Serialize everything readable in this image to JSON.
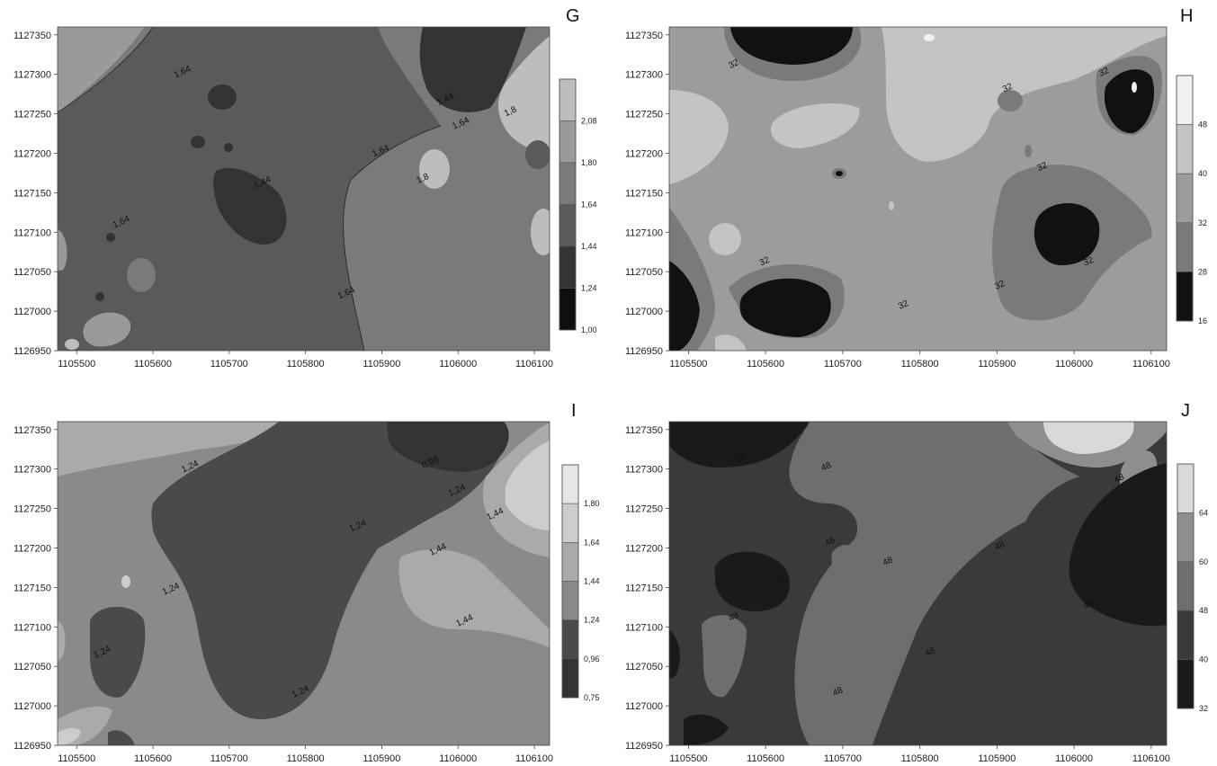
{
  "chart_data": [
    {
      "type": "heatmap",
      "panel_label": "G",
      "x_ticks": [
        1105500,
        1105600,
        1105700,
        1105800,
        1105900,
        1106000,
        1106100
      ],
      "y_ticks": [
        1127350,
        1127300,
        1127250,
        1127200,
        1127150,
        1127100,
        1127050,
        1127000,
        1126950
      ],
      "xlim": [
        1105475,
        1106120
      ],
      "ylim": [
        1126950,
        1127360
      ],
      "legend_levels": [
        "2,08",
        "1,80",
        "1,64",
        "1,44",
        "1,24",
        "1,00"
      ],
      "legend_colors": [
        "#bdbdbd",
        "#9a9a9a",
        "#7a7a7a",
        "#5a5a5a",
        "#333333",
        "#0f0f0f"
      ],
      "contour_labels": [
        {
          "text": "1,64",
          "x": 1105640,
          "y": 1127300
        },
        {
          "text": "1,64",
          "x": 1105560,
          "y": 1127110
        },
        {
          "text": "1,44",
          "x": 1105745,
          "y": 1127160
        },
        {
          "text": "1,64",
          "x": 1105855,
          "y": 1127020
        },
        {
          "text": "1,64",
          "x": 1105900,
          "y": 1127200
        },
        {
          "text": "1,8",
          "x": 1105955,
          "y": 1127165
        },
        {
          "text": "1,44",
          "x": 1105985,
          "y": 1127265
        },
        {
          "text": "1,64",
          "x": 1106005,
          "y": 1127235
        },
        {
          "text": "1,8",
          "x": 1106070,
          "y": 1127250
        }
      ]
    },
    {
      "type": "heatmap",
      "panel_label": "H",
      "x_ticks": [
        1105500,
        1105600,
        1105700,
        1105800,
        1105900,
        1106000,
        1106100
      ],
      "y_ticks": [
        1127350,
        1127300,
        1127250,
        1127200,
        1127150,
        1127100,
        1127050,
        1127000,
        1126950
      ],
      "xlim": [
        1105475,
        1106120
      ],
      "ylim": [
        1126950,
        1127360
      ],
      "legend_levels": [
        "48",
        "40",
        "32",
        "28",
        "16"
      ],
      "legend_colors": [
        "#f0f0f0",
        "#c4c4c4",
        "#9c9c9c",
        "#7a7a7a",
        "#111111"
      ],
      "contour_labels": [
        {
          "text": "32",
          "x": 1105560,
          "y": 1127310
        },
        {
          "text": "32",
          "x": 1105915,
          "y": 1127280
        },
        {
          "text": "32",
          "x": 1106040,
          "y": 1127300
        },
        {
          "text": "32",
          "x": 1105960,
          "y": 1127180
        },
        {
          "text": "32",
          "x": 1105600,
          "y": 1127060
        },
        {
          "text": "32",
          "x": 1105780,
          "y": 1127005
        },
        {
          "text": "32",
          "x": 1105905,
          "y": 1127030
        },
        {
          "text": "32",
          "x": 1106020,
          "y": 1127060
        }
      ]
    },
    {
      "type": "heatmap",
      "panel_label": "I",
      "x_ticks": [
        1105500,
        1105600,
        1105700,
        1105800,
        1105900,
        1106000,
        1106100
      ],
      "y_ticks": [
        1127350,
        1127300,
        1127250,
        1127200,
        1127150,
        1127100,
        1127050,
        1127000,
        1126950
      ],
      "xlim": [
        1105475,
        1106120
      ],
      "ylim": [
        1126950,
        1127360
      ],
      "legend_levels": [
        "1,80",
        "1,64",
        "1,44",
        "1,24",
        "0,96",
        "0,75"
      ],
      "legend_colors": [
        "#e6e6e6",
        "#cdcdcd",
        "#aaaaaa",
        "#8a8a8a",
        "#4a4a4a",
        "#333333"
      ],
      "contour_labels": [
        {
          "text": "1,24",
          "x": 1105650,
          "y": 1127300
        },
        {
          "text": "0,96",
          "x": 1105965,
          "y": 1127305
        },
        {
          "text": "1,24",
          "x": 1106000,
          "y": 1127270
        },
        {
          "text": "1,44",
          "x": 1106050,
          "y": 1127240
        },
        {
          "text": "1,24",
          "x": 1105870,
          "y": 1127225
        },
        {
          "text": "1,44",
          "x": 1105975,
          "y": 1127195
        },
        {
          "text": "1,24",
          "x": 1105625,
          "y": 1127145
        },
        {
          "text": "1,44",
          "x": 1106010,
          "y": 1127105
        },
        {
          "text": "1,24",
          "x": 1105535,
          "y": 1127065
        },
        {
          "text": "1,24",
          "x": 1105795,
          "y": 1127015
        }
      ]
    },
    {
      "type": "heatmap",
      "panel_label": "J",
      "x_ticks": [
        1105500,
        1105600,
        1105700,
        1105800,
        1105900,
        1106000,
        1106100
      ],
      "y_ticks": [
        1127350,
        1127300,
        1127250,
        1127200,
        1127150,
        1127100,
        1127050,
        1127000,
        1126950
      ],
      "xlim": [
        1105475,
        1106120
      ],
      "ylim": [
        1126950,
        1127360
      ],
      "legend_levels": [
        "64",
        "60",
        "48",
        "40",
        "32"
      ],
      "legend_colors": [
        "#d9d9d9",
        "#8e8e8e",
        "#6e6e6e",
        "#3a3a3a",
        "#1a1a1a"
      ],
      "contour_labels": [
        {
          "text": "40",
          "x": 1105570,
          "y": 1127310
        },
        {
          "text": "48",
          "x": 1105680,
          "y": 1127300
        },
        {
          "text": "48",
          "x": 1106060,
          "y": 1127285
        },
        {
          "text": "48",
          "x": 1105685,
          "y": 1127205
        },
        {
          "text": "48",
          "x": 1105760,
          "y": 1127180
        },
        {
          "text": "48",
          "x": 1105905,
          "y": 1127200
        },
        {
          "text": "40",
          "x": 1105620,
          "y": 1127155
        },
        {
          "text": "48",
          "x": 1106020,
          "y": 1127125
        },
        {
          "text": "48",
          "x": 1105560,
          "y": 1127110
        },
        {
          "text": "48",
          "x": 1105815,
          "y": 1127065
        },
        {
          "text": "48",
          "x": 1105695,
          "y": 1127015
        }
      ]
    }
  ]
}
